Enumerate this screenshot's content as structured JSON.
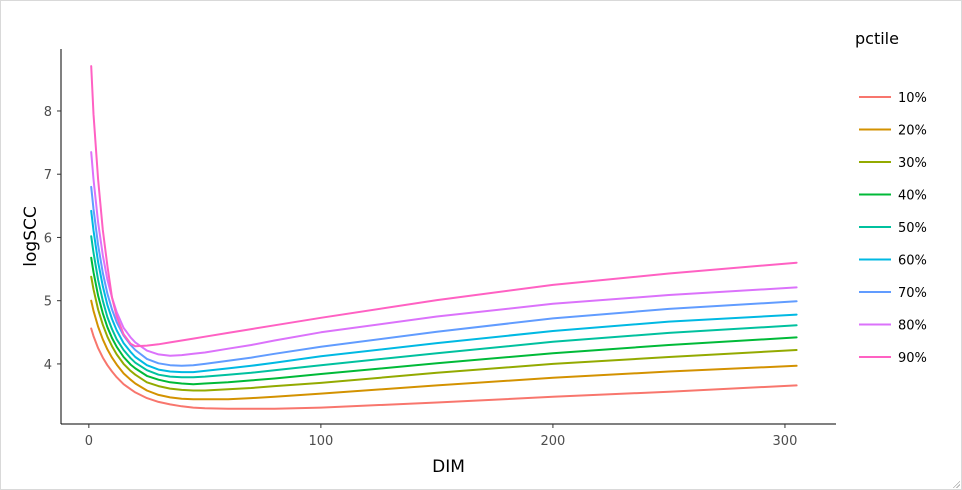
{
  "chart_data": {
    "type": "line",
    "xlabel": "DIM",
    "ylabel": "logSCC",
    "legend_title": "pctile",
    "legend_position": "right",
    "grid": false,
    "xlim": [
      -12,
      322
    ],
    "ylim": [
      3.05,
      8.98
    ],
    "x_ticks": [
      0,
      100,
      200,
      300
    ],
    "y_ticks": [
      4,
      5,
      6,
      7,
      8
    ],
    "x": [
      1,
      2,
      4,
      6,
      8,
      10,
      12,
      15,
      18,
      20,
      25,
      30,
      35,
      40,
      45,
      50,
      60,
      70,
      80,
      100,
      150,
      200,
      250,
      305
    ],
    "series": [
      {
        "name": "10%",
        "color": "#F8766D",
        "values": [
          4.56,
          4.44,
          4.25,
          4.1,
          3.98,
          3.88,
          3.79,
          3.68,
          3.6,
          3.55,
          3.46,
          3.4,
          3.36,
          3.33,
          3.31,
          3.3,
          3.29,
          3.29,
          3.29,
          3.31,
          3.39,
          3.48,
          3.56,
          3.66
        ]
      },
      {
        "name": "20%",
        "color": "#D39200",
        "values": [
          5.0,
          4.84,
          4.59,
          4.39,
          4.23,
          4.1,
          3.99,
          3.85,
          3.75,
          3.69,
          3.58,
          3.51,
          3.47,
          3.45,
          3.44,
          3.44,
          3.44,
          3.46,
          3.48,
          3.53,
          3.66,
          3.78,
          3.88,
          3.97
        ]
      },
      {
        "name": "30%",
        "color": "#93AA00",
        "values": [
          5.38,
          5.18,
          4.86,
          4.62,
          4.43,
          4.28,
          4.15,
          4.0,
          3.89,
          3.83,
          3.71,
          3.65,
          3.61,
          3.59,
          3.58,
          3.58,
          3.6,
          3.62,
          3.65,
          3.7,
          3.86,
          4.0,
          4.11,
          4.22
        ]
      },
      {
        "name": "40%",
        "color": "#00BA38",
        "values": [
          5.68,
          5.45,
          5.08,
          4.8,
          4.58,
          4.41,
          4.27,
          4.11,
          3.99,
          3.93,
          3.81,
          3.75,
          3.71,
          3.69,
          3.68,
          3.69,
          3.71,
          3.74,
          3.77,
          3.84,
          4.01,
          4.17,
          4.3,
          4.42
        ]
      },
      {
        "name": "50%",
        "color": "#00C19F",
        "values": [
          6.02,
          5.76,
          5.33,
          5.0,
          4.74,
          4.55,
          4.39,
          4.22,
          4.09,
          4.02,
          3.9,
          3.83,
          3.8,
          3.79,
          3.79,
          3.8,
          3.83,
          3.86,
          3.9,
          3.98,
          4.17,
          4.35,
          4.49,
          4.61
        ]
      },
      {
        "name": "60%",
        "color": "#00B9E3",
        "values": [
          6.42,
          6.11,
          5.61,
          5.23,
          4.93,
          4.71,
          4.53,
          4.33,
          4.19,
          4.11,
          3.98,
          3.91,
          3.88,
          3.87,
          3.87,
          3.89,
          3.93,
          3.97,
          4.02,
          4.12,
          4.33,
          4.52,
          4.67,
          4.78
        ]
      },
      {
        "name": "70%",
        "color": "#619CFF",
        "values": [
          6.8,
          6.45,
          5.88,
          5.44,
          5.11,
          4.86,
          4.66,
          4.45,
          4.3,
          4.22,
          4.08,
          4.01,
          3.98,
          3.97,
          3.98,
          4.0,
          4.05,
          4.1,
          4.16,
          4.27,
          4.51,
          4.72,
          4.87,
          4.99
        ]
      },
      {
        "name": "80%",
        "color": "#DB72FB",
        "values": [
          7.35,
          6.92,
          6.24,
          5.72,
          5.33,
          5.05,
          4.82,
          4.57,
          4.42,
          4.34,
          4.21,
          4.15,
          4.13,
          4.14,
          4.16,
          4.18,
          4.24,
          4.3,
          4.37,
          4.5,
          4.75,
          4.95,
          5.09,
          5.21
        ]
      },
      {
        "name": "90%",
        "color": "#FF61C3",
        "values": [
          8.71,
          7.95,
          6.92,
          6.12,
          5.55,
          5.05,
          4.75,
          4.47,
          4.32,
          4.28,
          4.29,
          4.31,
          4.34,
          4.37,
          4.4,
          4.43,
          4.49,
          4.55,
          4.61,
          4.73,
          5.01,
          5.25,
          5.43,
          5.6
        ]
      }
    ]
  }
}
